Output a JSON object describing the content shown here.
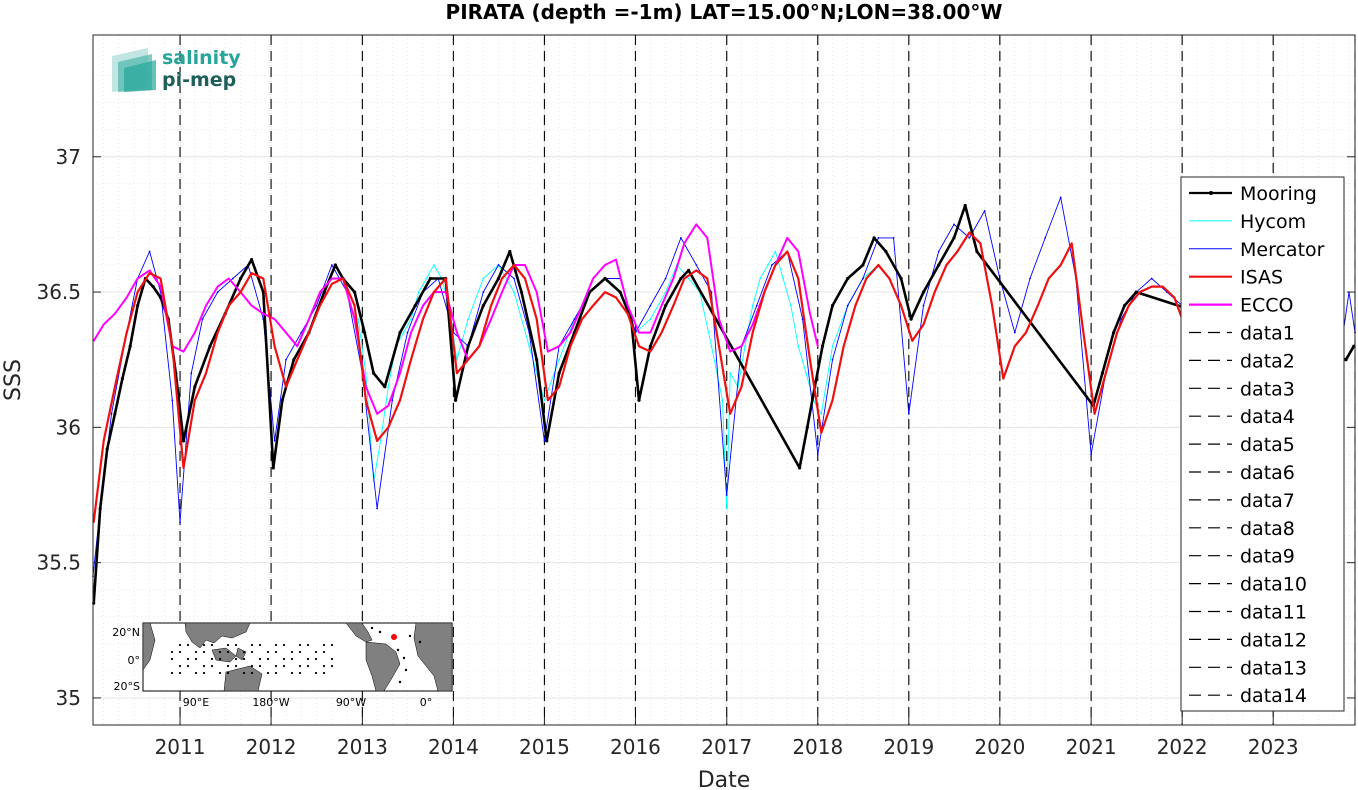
{
  "chart_data": {
    "type": "line",
    "title": "PIRATA (depth =-1m) LAT=15.00°N;LON=38.00°W",
    "xlabel": "Date",
    "ylabel": "SSS",
    "xlim": [
      "2010-01-17",
      "2023-11-25"
    ],
    "ylim": [
      34.9,
      37.45
    ],
    "x_ticks": [
      "2011-01-01",
      "2012-01-01",
      "2013-01-01",
      "2014-01-01",
      "2015-01-01",
      "2016-01-01",
      "2017-01-01",
      "2018-01-01",
      "2019-01-01",
      "2020-01-01",
      "2021-01-01",
      "2022-01-01",
      "2023-01-01"
    ],
    "x_tick_labels": [
      "2011",
      "2012",
      "2013",
      "2014",
      "2015",
      "2016",
      "2017",
      "2018",
      "2019",
      "2020",
      "2021",
      "2022",
      "2023"
    ],
    "y_ticks": [
      35,
      35.5,
      36,
      36.5,
      37
    ],
    "y_tick_labels": [
      "35",
      "35.5",
      "36",
      "36.5",
      "37"
    ],
    "grid": true,
    "legend_position": "right",
    "series": [
      {
        "name": "Mooring",
        "color": "#000000",
        "style": "solid-dots",
        "x": [
          "2010-01-20",
          "2010-02-15",
          "2010-03-15",
          "2010-04-15",
          "2010-05-15",
          "2010-06-15",
          "2010-07-15",
          "2010-08-15",
          "2010-09-15",
          "2010-10-15",
          "2010-11-15",
          "2010-12-15",
          "2011-01-15",
          "2011-03-01",
          "2011-05-01",
          "2011-07-01",
          "2011-09-01",
          "2011-10-15",
          "2011-12-01",
          "2012-01-10",
          "2012-02-15",
          "2012-04-01",
          "2012-06-01",
          "2012-08-01",
          "2012-09-15",
          "2012-10-15",
          "2012-12-01",
          "2013-01-10",
          "2013-02-15",
          "2013-04-01",
          "2013-06-01",
          "2013-08-01",
          "2013-10-01",
          "2013-12-01",
          "2014-01-10",
          "2014-03-01",
          "2014-05-01",
          "2014-07-01",
          "2014-08-15",
          "2014-10-01",
          "2014-12-01",
          "2015-01-10",
          "2015-03-01",
          "2015-05-01",
          "2015-07-01",
          "2015-09-01",
          "2015-11-01",
          "2015-12-15",
          "2016-01-15",
          "2016-03-01",
          "2016-05-01",
          "2016-07-01",
          "2016-08-01",
          "2017-10-20",
          "2017-11-20",
          "2017-12-20",
          "2018-01-20",
          "2018-03-01",
          "2018-05-01",
          "2018-07-01",
          "2018-08-15",
          "2018-10-01",
          "2018-12-01",
          "2019-01-10",
          "2019-03-01",
          "2019-05-01",
          "2019-07-01",
          "2019-08-15",
          "2019-10-01",
          "2021-01-10",
          "2021-02-15",
          "2021-04-01",
          "2021-05-15",
          "2021-07-01",
          "2023-10-20",
          "2023-11-20"
        ],
        "y": [
          35.35,
          35.7,
          35.92,
          36.05,
          36.18,
          36.3,
          36.45,
          36.55,
          36.52,
          36.48,
          36.4,
          36.2,
          35.95,
          36.15,
          36.3,
          36.42,
          36.55,
          36.62,
          36.5,
          35.85,
          36.1,
          36.25,
          36.35,
          36.5,
          36.6,
          36.55,
          36.5,
          36.35,
          36.2,
          36.15,
          36.35,
          36.45,
          36.55,
          36.55,
          36.1,
          36.3,
          36.45,
          36.55,
          36.65,
          36.5,
          36.25,
          35.95,
          36.2,
          36.35,
          36.5,
          36.55,
          36.5,
          36.4,
          36.1,
          36.3,
          36.45,
          36.55,
          36.58,
          35.85,
          36.0,
          36.15,
          36.3,
          36.45,
          36.55,
          36.6,
          36.7,
          36.65,
          36.55,
          36.4,
          36.5,
          36.6,
          36.7,
          36.82,
          36.65,
          36.08,
          36.2,
          36.35,
          36.45,
          36.5,
          36.25,
          36.3
        ]
      },
      {
        "name": "Hycom",
        "color": "#00ffff",
        "style": "solid-thin",
        "x": [
          "2012-12-15",
          "2013-01-15",
          "2013-02-15",
          "2013-03-15",
          "2013-04-15",
          "2013-05-15",
          "2013-06-15",
          "2013-07-15",
          "2013-08-15",
          "2013-09-15",
          "2013-10-15",
          "2013-11-15",
          "2013-12-15",
          "2014-01-15",
          "2014-03-01",
          "2014-05-01",
          "2014-07-01",
          "2014-09-01",
          "2014-11-01",
          "2015-01-01",
          "2015-03-01",
          "2015-05-01",
          "2015-07-01",
          "2015-09-01",
          "2015-11-01",
          "2016-01-01",
          "2016-03-01",
          "2016-05-01",
          "2016-06-15",
          "2016-08-01",
          "2016-09-15",
          "2016-11-01",
          "2016-12-15",
          "2017-01-01",
          "2017-01-15",
          "2017-02-15",
          "2017-03-15",
          "2017-04-15",
          "2017-05-15",
          "2017-06-15",
          "2017-07-15",
          "2017-08-15",
          "2017-09-15",
          "2017-10-15",
          "2017-11-15",
          "2017-12-15",
          "2018-01-15",
          "2018-03-01",
          "2018-05-01",
          "2018-07-01",
          "2018-09-01"
        ],
        "y": [
          36.4,
          36.2,
          35.8,
          35.95,
          36.15,
          36.3,
          36.35,
          36.4,
          36.5,
          36.55,
          36.6,
          36.55,
          36.45,
          36.25,
          36.4,
          36.55,
          36.6,
          36.5,
          36.3,
          36.1,
          36.25,
          36.4,
          36.5,
          36.55,
          36.5,
          36.35,
          36.4,
          36.5,
          36.6,
          36.55,
          36.5,
          36.3,
          36.1,
          35.7,
          36.2,
          36.15,
          36.3,
          36.45,
          36.55,
          36.6,
          36.65,
          36.55,
          36.45,
          36.3,
          36.2,
          36.1,
          36.05,
          36.3,
          36.45,
          36.55,
          36.6
        ]
      },
      {
        "name": "Mercator",
        "color": "#0000ff",
        "style": "solid-thin",
        "x": [
          "2010-01-17",
          "2010-02-15",
          "2010-04-01",
          "2010-06-01",
          "2010-07-15",
          "2010-09-01",
          "2010-10-15",
          "2010-12-01",
          "2011-01-01",
          "2011-02-15",
          "2011-04-01",
          "2011-06-01",
          "2011-08-01",
          "2011-10-01",
          "2011-12-01",
          "2012-01-15",
          "2012-03-01",
          "2012-05-01",
          "2012-07-01",
          "2012-09-01",
          "2012-11-01",
          "2013-01-01",
          "2013-03-01",
          "2013-05-01",
          "2013-07-01",
          "2013-09-01",
          "2013-11-01",
          "2014-01-01",
          "2014-03-01",
          "2014-05-01",
          "2014-07-01",
          "2014-09-01",
          "2014-11-01",
          "2015-01-01",
          "2015-03-01",
          "2015-05-01",
          "2015-07-01",
          "2015-09-01",
          "2015-11-01",
          "2016-01-01",
          "2016-03-01",
          "2016-05-01",
          "2016-07-01",
          "2016-09-01",
          "2016-11-01",
          "2017-01-01",
          "2017-03-01",
          "2017-05-01",
          "2017-07-01",
          "2017-09-01",
          "2017-11-01",
          "2018-01-01",
          "2018-03-01",
          "2018-05-01",
          "2018-07-01",
          "2018-09-01",
          "2018-11-01",
          "2019-01-01",
          "2019-03-01",
          "2019-05-01",
          "2019-07-01",
          "2019-09-01",
          "2019-11-01",
          "2020-01-01",
          "2020-03-01",
          "2020-05-01",
          "2020-07-01",
          "2020-09-01",
          "2020-11-01",
          "2021-01-01",
          "2021-03-01",
          "2021-05-01",
          "2021-07-01",
          "2021-09-01",
          "2021-11-01",
          "2022-01-01",
          "2023-10-01",
          "2023-11-01",
          "2023-11-25"
        ],
        "y": [
          35.45,
          35.7,
          36.05,
          36.35,
          36.55,
          36.65,
          36.5,
          36.1,
          35.65,
          36.2,
          36.4,
          36.5,
          36.55,
          36.6,
          36.4,
          35.95,
          36.25,
          36.35,
          36.45,
          36.6,
          36.5,
          36.2,
          35.7,
          36.1,
          36.35,
          36.5,
          36.55,
          36.35,
          36.3,
          36.5,
          36.6,
          36.55,
          36.35,
          35.95,
          36.3,
          36.4,
          36.5,
          36.55,
          36.55,
          36.35,
          36.45,
          36.55,
          36.7,
          36.6,
          36.5,
          35.75,
          36.3,
          36.45,
          36.6,
          36.65,
          36.4,
          35.9,
          36.25,
          36.45,
          36.55,
          36.7,
          36.7,
          36.05,
          36.45,
          36.65,
          36.75,
          36.7,
          36.8,
          36.55,
          36.35,
          36.55,
          36.7,
          36.85,
          36.55,
          35.9,
          36.2,
          36.4,
          36.5,
          36.55,
          36.5,
          36.45,
          36.3,
          36.5,
          36.35
        ]
      },
      {
        "name": "ISAS",
        "color": "#ee1111",
        "style": "solid-thick",
        "x": [
          "2010-01-20",
          "2010-03-01",
          "2010-04-15",
          "2010-06-01",
          "2010-07-15",
          "2010-09-01",
          "2010-10-15",
          "2010-12-01",
          "2011-01-15",
          "2011-03-01",
          "2011-04-15",
          "2011-06-01",
          "2011-07-15",
          "2011-09-01",
          "2011-10-15",
          "2011-12-01",
          "2012-01-15",
          "2012-03-01",
          "2012-04-15",
          "2012-06-01",
          "2012-07-15",
          "2012-09-01",
          "2012-10-15",
          "2012-12-01",
          "2013-01-15",
          "2013-03-01",
          "2013-04-15",
          "2013-06-01",
          "2013-07-15",
          "2013-09-01",
          "2013-10-15",
          "2013-12-01",
          "2014-01-15",
          "2014-03-01",
          "2014-04-15",
          "2014-06-01",
          "2014-07-15",
          "2014-09-01",
          "2014-10-15",
          "2014-12-01",
          "2015-01-15",
          "2015-03-01",
          "2015-04-15",
          "2015-06-01",
          "2015-07-15",
          "2015-09-01",
          "2015-10-15",
          "2015-12-01",
          "2016-01-15",
          "2016-03-01",
          "2016-04-15",
          "2016-06-01",
          "2016-07-15",
          "2016-09-01",
          "2016-10-15",
          "2016-12-01",
          "2017-01-15",
          "2017-03-01",
          "2017-04-15",
          "2017-06-01",
          "2017-07-15",
          "2017-09-01",
          "2017-10-15",
          "2017-12-01",
          "2018-01-15",
          "2018-03-01",
          "2018-04-15",
          "2018-06-01",
          "2018-07-15",
          "2018-09-01",
          "2018-10-15",
          "2018-12-01",
          "2019-01-15",
          "2019-03-01",
          "2019-04-15",
          "2019-06-01",
          "2019-07-15",
          "2019-09-01",
          "2019-10-15",
          "2019-12-01",
          "2020-01-15",
          "2020-03-01",
          "2020-04-15",
          "2020-06-01",
          "2020-07-15",
          "2020-09-01",
          "2020-10-15",
          "2020-12-01",
          "2021-01-15",
          "2021-03-01",
          "2021-04-15",
          "2021-06-01",
          "2021-07-15",
          "2021-09-01",
          "2021-10-15",
          "2021-12-01",
          "2022-01-01"
        ],
        "y": [
          35.65,
          35.95,
          36.15,
          36.35,
          36.5,
          36.57,
          36.55,
          36.3,
          35.85,
          36.1,
          36.2,
          36.35,
          36.45,
          36.5,
          36.57,
          36.55,
          36.3,
          36.15,
          36.25,
          36.35,
          36.45,
          36.53,
          36.55,
          36.45,
          36.1,
          35.95,
          36.0,
          36.1,
          36.25,
          36.4,
          36.5,
          36.55,
          36.2,
          36.25,
          36.3,
          36.45,
          36.55,
          36.6,
          36.55,
          36.4,
          36.1,
          36.15,
          36.3,
          36.4,
          36.45,
          36.5,
          36.48,
          36.42,
          36.3,
          36.28,
          36.35,
          36.45,
          36.55,
          36.58,
          36.55,
          36.3,
          36.05,
          36.15,
          36.35,
          36.5,
          36.6,
          36.65,
          36.55,
          36.25,
          35.98,
          36.1,
          36.3,
          36.45,
          36.55,
          36.6,
          36.55,
          36.45,
          36.32,
          36.38,
          36.5,
          36.6,
          36.65,
          36.72,
          36.68,
          36.45,
          36.18,
          36.3,
          36.35,
          36.45,
          36.55,
          36.6,
          36.68,
          36.35,
          36.05,
          36.2,
          36.35,
          36.45,
          36.5,
          36.52,
          36.52,
          36.48,
          36.4
        ]
      },
      {
        "name": "ECCO",
        "color": "#ff00ff",
        "style": "solid-medium",
        "x": [
          "2010-01-20",
          "2010-03-01",
          "2010-04-15",
          "2010-06-01",
          "2010-07-15",
          "2010-09-01",
          "2010-10-15",
          "2010-12-01",
          "2011-01-15",
          "2011-03-01",
          "2011-04-15",
          "2011-06-01",
          "2011-07-15",
          "2011-09-01",
          "2011-10-15",
          "2011-12-01",
          "2012-01-15",
          "2012-03-01",
          "2012-04-15",
          "2012-06-01",
          "2012-07-15",
          "2012-09-01",
          "2012-10-15",
          "2012-12-01",
          "2013-01-15",
          "2013-03-01",
          "2013-04-15",
          "2013-06-01",
          "2013-07-15",
          "2013-09-01",
          "2013-10-15",
          "2013-12-01",
          "2014-01-15",
          "2014-03-01",
          "2014-04-15",
          "2014-06-01",
          "2014-07-15",
          "2014-09-01",
          "2014-10-15",
          "2014-12-01",
          "2015-01-15",
          "2015-03-01",
          "2015-04-15",
          "2015-06-01",
          "2015-07-15",
          "2015-09-01",
          "2015-10-15",
          "2015-12-01",
          "2016-01-15",
          "2016-03-01",
          "2016-04-15",
          "2016-06-01",
          "2016-07-15",
          "2016-09-01",
          "2016-10-15",
          "2016-12-01",
          "2017-01-15",
          "2017-03-01",
          "2017-04-15",
          "2017-06-01",
          "2017-07-15",
          "2017-09-01",
          "2017-10-15",
          "2017-12-01",
          "2018-01-01"
        ],
        "y": [
          36.32,
          36.38,
          36.42,
          36.48,
          36.55,
          36.58,
          36.52,
          36.3,
          36.28,
          36.35,
          36.45,
          36.52,
          36.55,
          36.5,
          36.45,
          36.42,
          36.4,
          36.35,
          36.3,
          36.4,
          36.5,
          36.55,
          36.55,
          36.4,
          36.15,
          36.05,
          36.08,
          36.2,
          36.35,
          36.45,
          36.5,
          36.5,
          36.35,
          36.25,
          36.3,
          36.4,
          36.5,
          36.6,
          36.6,
          36.5,
          36.28,
          36.3,
          36.35,
          36.45,
          36.55,
          36.6,
          36.62,
          36.45,
          36.35,
          36.35,
          36.45,
          36.55,
          36.68,
          36.75,
          36.7,
          36.4,
          36.28,
          36.3,
          36.38,
          36.5,
          36.6,
          36.7,
          36.65,
          36.42,
          36.3
        ]
      }
    ],
    "reference_lines": {
      "style": "dashed",
      "color": "#000000",
      "names": [
        "data1",
        "data2",
        "data3",
        "data4",
        "data5",
        "data6",
        "data7",
        "data8",
        "data9",
        "data10",
        "data11",
        "data12",
        "data13",
        "data14"
      ],
      "x": [
        "2011-01-01",
        "2012-01-01",
        "2013-01-01",
        "2014-01-01",
        "2015-01-01",
        "2016-01-01",
        "2017-01-01",
        "2018-01-01",
        "2019-01-01",
        "2020-01-01",
        "2021-01-01",
        "2022-01-01",
        "2023-01-01",
        "2023-11-25"
      ]
    }
  },
  "logo": {
    "line1": "salinity",
    "line2": "pi-mep",
    "color": "#26a69a",
    "color_dark": "#1f5f5a"
  },
  "inset_map": {
    "y_labels": [
      "20°N",
      "0°",
      "20°S"
    ],
    "x_labels": [
      "90°E",
      "180°W",
      "90°W",
      "0°"
    ],
    "land_color": "#808080",
    "ocean_color": "#ffffff",
    "marker_color": "#ff0000"
  }
}
